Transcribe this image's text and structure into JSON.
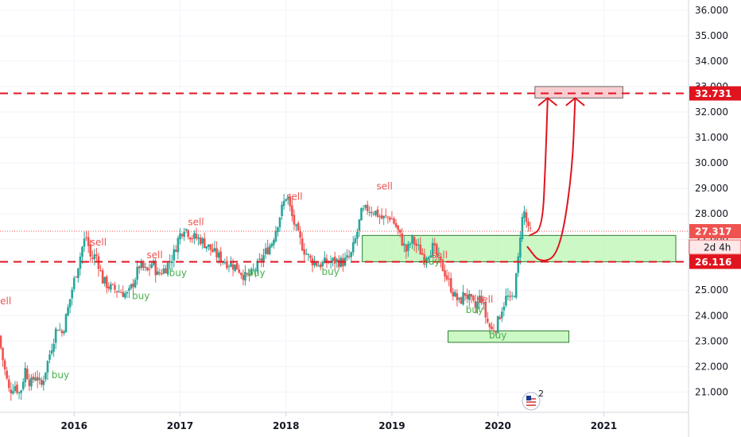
{
  "chart_data": {
    "type": "candlestick",
    "y_axis": {
      "side": "right",
      "range": [
        20.2,
        36.4
      ],
      "ticks": [
        "36.000",
        "35.000",
        "34.000",
        "33.000",
        "32.000",
        "31.000",
        "30.000",
        "29.000",
        "28.000",
        "27.000",
        "26.000",
        "25.000",
        "24.000",
        "23.000",
        "22.000",
        "21.000"
      ],
      "tick_values": [
        36,
        35,
        34,
        33,
        32,
        31,
        30,
        29,
        28,
        27,
        26,
        25,
        24,
        23,
        22,
        21
      ]
    },
    "x_axis": {
      "range": [
        2015.3,
        2021.8
      ],
      "ticks": [
        "2016",
        "2017",
        "2018",
        "2019",
        "2020",
        "2021"
      ],
      "tick_values": [
        2016,
        2017,
        2018,
        2019,
        2020,
        2021
      ]
    },
    "grid": true,
    "colors": {
      "up": "#26a69a",
      "down": "#ef5350",
      "level_line": "#e0141e",
      "current_price": "#ef5350",
      "buy_text": "#4caf50",
      "sell_text": "#ef5350",
      "zone_green_fill": "#b9f6b0",
      "zone_green_border": "#2e7d32",
      "zone_red_fill": "#f8c8cc",
      "zone_red_border": "#666666",
      "arrow": "#e0141e"
    },
    "price_series": [
      {
        "t": 2015.3,
        "p": 23.2
      },
      {
        "t": 2015.35,
        "p": 22.0
      },
      {
        "t": 2015.4,
        "p": 21.0
      },
      {
        "t": 2015.45,
        "p": 21.3
      },
      {
        "t": 2015.5,
        "p": 20.9
      },
      {
        "t": 2015.55,
        "p": 21.9
      },
      {
        "t": 2015.6,
        "p": 21.3
      },
      {
        "t": 2015.65,
        "p": 21.7
      },
      {
        "t": 2015.7,
        "p": 21.2
      },
      {
        "t": 2015.75,
        "p": 22.0
      },
      {
        "t": 2015.8,
        "p": 22.8
      },
      {
        "t": 2015.85,
        "p": 23.6
      },
      {
        "t": 2015.9,
        "p": 23.3
      },
      {
        "t": 2015.95,
        "p": 24.2
      },
      {
        "t": 2016.0,
        "p": 25.2
      },
      {
        "t": 2016.05,
        "p": 26.0
      },
      {
        "t": 2016.1,
        "p": 26.9
      },
      {
        "t": 2016.13,
        "p": 27.1
      },
      {
        "t": 2016.17,
        "p": 26.2
      },
      {
        "t": 2016.22,
        "p": 26.4
      },
      {
        "t": 2016.28,
        "p": 25.4
      },
      {
        "t": 2016.35,
        "p": 25.1
      },
      {
        "t": 2016.45,
        "p": 24.95
      },
      {
        "t": 2016.52,
        "p": 24.8
      },
      {
        "t": 2016.58,
        "p": 25.4
      },
      {
        "t": 2016.63,
        "p": 26.0
      },
      {
        "t": 2016.7,
        "p": 25.7
      },
      {
        "t": 2016.75,
        "p": 26.1
      },
      {
        "t": 2016.8,
        "p": 25.6
      },
      {
        "t": 2016.88,
        "p": 25.9
      },
      {
        "t": 2016.95,
        "p": 26.4
      },
      {
        "t": 2017.0,
        "p": 27.1
      },
      {
        "t": 2017.05,
        "p": 27.5
      },
      {
        "t": 2017.12,
        "p": 27.1
      },
      {
        "t": 2017.2,
        "p": 27.0
      },
      {
        "t": 2017.28,
        "p": 26.7
      },
      {
        "t": 2017.35,
        "p": 26.4
      },
      {
        "t": 2017.45,
        "p": 26.1
      },
      {
        "t": 2017.55,
        "p": 25.9
      },
      {
        "t": 2017.63,
        "p": 25.5
      },
      {
        "t": 2017.68,
        "p": 25.6
      },
      {
        "t": 2017.75,
        "p": 26.0
      },
      {
        "t": 2017.82,
        "p": 26.5
      },
      {
        "t": 2017.88,
        "p": 26.9
      },
      {
        "t": 2017.93,
        "p": 27.6
      },
      {
        "t": 2017.98,
        "p": 28.3
      },
      {
        "t": 2018.02,
        "p": 28.8
      },
      {
        "t": 2018.06,
        "p": 28.0
      },
      {
        "t": 2018.12,
        "p": 27.2
      },
      {
        "t": 2018.18,
        "p": 26.6
      },
      {
        "t": 2018.24,
        "p": 26.2
      },
      {
        "t": 2018.32,
        "p": 26.0
      },
      {
        "t": 2018.4,
        "p": 26.1
      },
      {
        "t": 2018.48,
        "p": 26.15
      },
      {
        "t": 2018.55,
        "p": 26.1
      },
      {
        "t": 2018.62,
        "p": 26.3
      },
      {
        "t": 2018.68,
        "p": 27.2
      },
      {
        "t": 2018.72,
        "p": 28.0
      },
      {
        "t": 2018.78,
        "p": 28.2
      },
      {
        "t": 2018.85,
        "p": 28.1
      },
      {
        "t": 2018.92,
        "p": 27.8
      },
      {
        "t": 2019.0,
        "p": 27.9
      },
      {
        "t": 2019.05,
        "p": 27.5
      },
      {
        "t": 2019.1,
        "p": 27.0
      },
      {
        "t": 2019.15,
        "p": 26.5
      },
      {
        "t": 2019.2,
        "p": 27.0
      },
      {
        "t": 2019.25,
        "p": 26.7
      },
      {
        "t": 2019.32,
        "p": 26.3
      },
      {
        "t": 2019.4,
        "p": 26.7
      },
      {
        "t": 2019.45,
        "p": 26.2
      },
      {
        "t": 2019.5,
        "p": 25.8
      },
      {
        "t": 2019.55,
        "p": 25.3
      },
      {
        "t": 2019.6,
        "p": 24.8
      },
      {
        "t": 2019.65,
        "p": 24.5
      },
      {
        "t": 2019.7,
        "p": 24.9
      },
      {
        "t": 2019.75,
        "p": 24.6
      },
      {
        "t": 2019.8,
        "p": 24.3
      },
      {
        "t": 2019.85,
        "p": 24.8
      },
      {
        "t": 2019.9,
        "p": 23.9
      },
      {
        "t": 2019.95,
        "p": 23.4
      },
      {
        "t": 2020.0,
        "p": 23.6
      },
      {
        "t": 2020.05,
        "p": 24.3
      },
      {
        "t": 2020.1,
        "p": 24.8
      },
      {
        "t": 2020.13,
        "p": 24.5
      },
      {
        "t": 2020.17,
        "p": 25.0
      },
      {
        "t": 2020.2,
        "p": 26.0
      },
      {
        "t": 2020.23,
        "p": 27.6
      },
      {
        "t": 2020.26,
        "p": 28.1
      },
      {
        "t": 2020.3,
        "p": 27.3
      }
    ],
    "horizontal_lines": [
      {
        "value": 32.731,
        "style": "dashed",
        "label": "32.731"
      },
      {
        "value": 26.116,
        "style": "dashed",
        "label": "26.116"
      }
    ],
    "current_price": {
      "value": 27.317,
      "label": "27.317",
      "countdown": "2d 4h"
    },
    "zones": [
      {
        "type": "demand",
        "x0": 2018.72,
        "x1": 2021.68,
        "y0": 26.116,
        "y1": 27.15
      },
      {
        "type": "demand",
        "x0": 2019.53,
        "x1": 2020.67,
        "y0": 22.95,
        "y1": 23.4
      },
      {
        "type": "target",
        "x0": 2020.35,
        "x1": 2021.18,
        "y0": 32.55,
        "y1": 33.0
      }
    ],
    "annotations": [
      {
        "text": "sell",
        "kind": "sell",
        "t": 2015.33,
        "p": 24.45
      },
      {
        "text": "buy",
        "kind": "buy",
        "t": 2015.87,
        "p": 21.55
      },
      {
        "text": "sell",
        "kind": "sell",
        "t": 2016.23,
        "p": 26.75
      },
      {
        "text": "buy",
        "kind": "buy",
        "t": 2016.63,
        "p": 24.65
      },
      {
        "text": "sell",
        "kind": "sell",
        "t": 2016.76,
        "p": 26.25
      },
      {
        "text": "buy",
        "kind": "buy",
        "t": 2016.98,
        "p": 25.55
      },
      {
        "text": "sell",
        "kind": "sell",
        "t": 2017.15,
        "p": 27.55
      },
      {
        "text": "buy",
        "kind": "buy",
        "t": 2017.72,
        "p": 25.55
      },
      {
        "text": "sell",
        "kind": "sell",
        "t": 2018.08,
        "p": 28.55
      },
      {
        "text": "buy",
        "kind": "buy",
        "t": 2018.42,
        "p": 25.6
      },
      {
        "text": "sell",
        "kind": "sell",
        "t": 2018.93,
        "p": 28.95
      },
      {
        "text": "buy",
        "kind": "buy",
        "t": 2019.37,
        "p": 26.0
      },
      {
        "text": "sell",
        "kind": "sell",
        "t": 2019.45,
        "p": 26.25
      },
      {
        "text": "buy",
        "kind": "buy",
        "t": 2019.78,
        "p": 24.1
      },
      {
        "text": "sell",
        "kind": "sell",
        "t": 2019.88,
        "p": 24.5
      },
      {
        "text": "buy",
        "kind": "buy",
        "t": 2020.0,
        "p": 23.1
      }
    ],
    "arrows": [
      {
        "points": [
          [
            2020.3,
            27.15
          ],
          [
            2020.42,
            27.4
          ],
          [
            2020.45,
            30.0
          ],
          [
            2020.47,
            32.55
          ]
        ]
      },
      {
        "points": [
          [
            2020.28,
            26.7
          ],
          [
            2020.4,
            26.05
          ],
          [
            2020.58,
            26.4
          ],
          [
            2020.7,
            29.5
          ],
          [
            2020.73,
            32.55
          ]
        ]
      }
    ],
    "badge": {
      "icon": "flag-globe-icon",
      "text": "2"
    }
  }
}
